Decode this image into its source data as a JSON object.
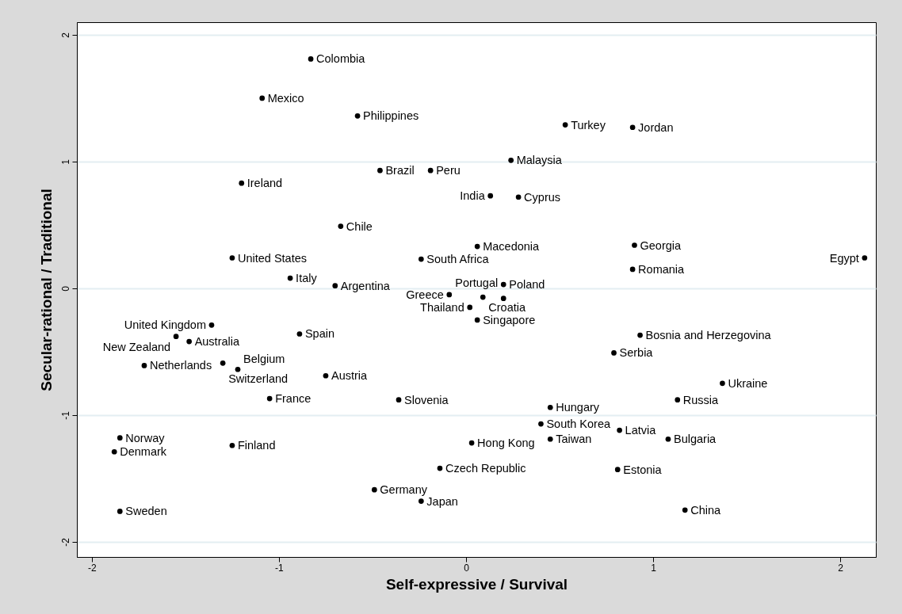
{
  "chart_data": {
    "type": "scatter",
    "xlabel": "Self-expressive / Survival",
    "ylabel": "Secular-rational / Traditional",
    "xlim": [
      -2.08,
      2.19
    ],
    "ylim": [
      -2.12,
      2.1
    ],
    "xticks": [
      -2,
      -1,
      0,
      1,
      2
    ],
    "yticks": [
      -2,
      -1,
      0,
      1,
      2
    ],
    "grid": "y",
    "marker": "circle",
    "series": [
      {
        "color": "#000000",
        "x": [
          -0.83,
          -1.09,
          -0.58,
          0.53,
          0.89,
          0.24,
          -0.46,
          -0.19,
          -1.2,
          0.13,
          0.28,
          -0.67,
          0.06,
          0.9,
          -1.25,
          -0.24,
          2.13,
          0.89,
          -0.94,
          -0.7,
          0.2,
          -0.09,
          0.09,
          0.2,
          0.02,
          0.06,
          -1.36,
          -1.55,
          -1.48,
          -0.89,
          0.93,
          0.79,
          -1.72,
          -1.3,
          -1.22,
          -0.75,
          1.37,
          -1.05,
          -0.36,
          1.13,
          0.45,
          0.4,
          0.82,
          0.45,
          1.08,
          0.03,
          -1.85,
          -1.88,
          -1.25,
          -0.14,
          0.81,
          -0.49,
          -0.24,
          -1.85,
          1.17
        ],
        "values": [
          1.81,
          1.5,
          1.36,
          1.29,
          1.27,
          1.01,
          0.93,
          0.93,
          0.83,
          0.73,
          0.72,
          0.49,
          0.33,
          0.34,
          0.24,
          0.23,
          0.24,
          0.15,
          0.08,
          0.02,
          0.03,
          -0.05,
          -0.07,
          -0.08,
          -0.15,
          -0.25,
          -0.29,
          -0.38,
          -0.42,
          -0.36,
          -0.37,
          -0.51,
          -0.61,
          -0.59,
          -0.64,
          -0.69,
          -0.75,
          -0.87,
          -0.88,
          -0.88,
          -0.94,
          -1.07,
          -1.12,
          -1.19,
          -1.19,
          -1.22,
          -1.18,
          -1.29,
          -1.24,
          -1.42,
          -1.43,
          -1.59,
          -1.68,
          -1.76,
          -1.75
        ],
        "value_labels": [
          "Colombia",
          "Mexico",
          "Philippines",
          "Turkey",
          "Jordan",
          "Malaysia",
          "Brazil",
          "Peru",
          "Ireland",
          "India",
          "Cyprus",
          "Chile",
          "Macedonia",
          "Georgia",
          "United States",
          "South Africa",
          "Egypt",
          "Romania",
          "Italy",
          "Argentina",
          "Poland",
          "Greece",
          "Croatia",
          "Portugal",
          "Thailand",
          "Singapore",
          "United Kingdom",
          "New Zealand",
          "Australia",
          "Spain",
          "Bosnia and Herzegovina",
          "Serbia",
          "Netherlands",
          "Switzerland",
          "Belgium",
          "Austria",
          "Ukraine",
          "France",
          "Slovenia",
          "Russia",
          "Hungary",
          "South Korea",
          "Latvia",
          "Taiwan",
          "Bulgaria",
          "Hong Kong",
          "Norway",
          "Denmark",
          "Finland",
          "Czech Republic",
          "Estonia",
          "Germany",
          "Japan",
          "Sweden",
          "China"
        ]
      }
    ]
  }
}
